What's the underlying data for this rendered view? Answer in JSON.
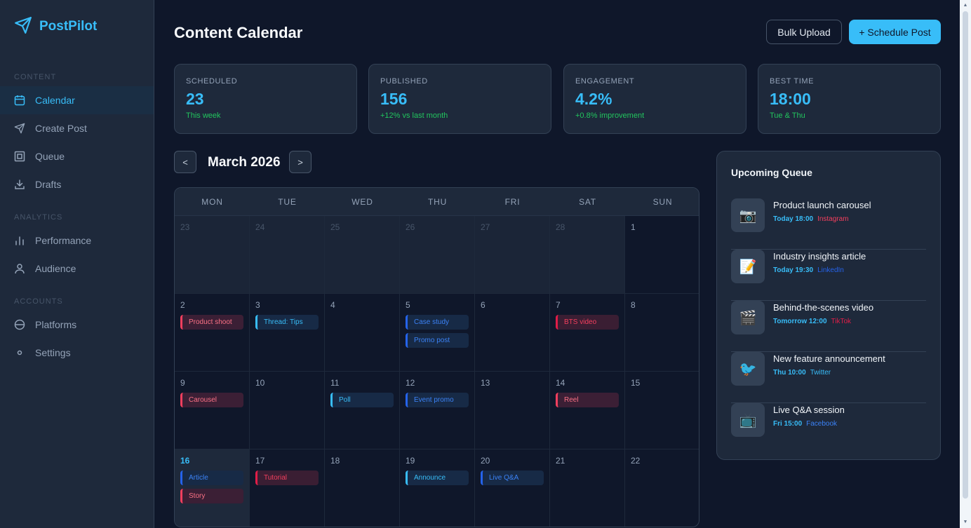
{
  "app": {
    "name": "PostPilot"
  },
  "sidebar": {
    "sections": [
      {
        "label": "CONTENT"
      },
      {
        "label": "ANALYTICS"
      },
      {
        "label": "ACCOUNTS"
      }
    ],
    "items": [
      {
        "label": "Calendar",
        "icon": "calendar-icon",
        "active": true
      },
      {
        "label": "Create Post",
        "icon": "send-icon"
      },
      {
        "label": "Queue",
        "icon": "queue-icon"
      },
      {
        "label": "Drafts",
        "icon": "download-icon"
      },
      {
        "label": "Performance",
        "icon": "bar-chart-icon"
      },
      {
        "label": "Audience",
        "icon": "user-icon"
      },
      {
        "label": "Platforms",
        "icon": "globe-icon"
      },
      {
        "label": "Settings",
        "icon": "settings-icon"
      }
    ]
  },
  "header": {
    "title": "Content Calendar",
    "bulk_upload": "Bulk Upload",
    "schedule_post": "+ Schedule Post"
  },
  "stats": [
    {
      "label": "SCHEDULED",
      "value": "23",
      "sub": "This week"
    },
    {
      "label": "PUBLISHED",
      "value": "156",
      "sub": "+12% vs last month"
    },
    {
      "label": "ENGAGEMENT",
      "value": "4.2%",
      "sub": "+0.8% improvement"
    },
    {
      "label": "BEST TIME",
      "value": "18:00",
      "sub": "Tue & Thu"
    }
  ],
  "calendar": {
    "month": "March 2026",
    "prev": "<",
    "next": ">",
    "weekdays": [
      "MON",
      "TUE",
      "WED",
      "THU",
      "FRI",
      "SAT",
      "SUN"
    ],
    "weeks": [
      [
        {
          "day": "23",
          "other": true,
          "events": []
        },
        {
          "day": "24",
          "other": true,
          "events": []
        },
        {
          "day": "25",
          "other": true,
          "events": []
        },
        {
          "day": "26",
          "other": true,
          "events": []
        },
        {
          "day": "27",
          "other": true,
          "events": []
        },
        {
          "day": "28",
          "other": true,
          "events": []
        },
        {
          "day": "1",
          "events": []
        }
      ],
      [
        {
          "day": "2",
          "events": [
            {
              "label": "Product shoot",
              "style": "ev-pink"
            }
          ]
        },
        {
          "day": "3",
          "events": [
            {
              "label": "Thread: Tips",
              "style": "ev-blue"
            }
          ]
        },
        {
          "day": "4",
          "events": []
        },
        {
          "day": "5",
          "events": [
            {
              "label": "Case study",
              "style": "ev-blue2"
            },
            {
              "label": "Promo post",
              "style": "ev-blue2"
            }
          ]
        },
        {
          "day": "6",
          "events": []
        },
        {
          "day": "7",
          "events": [
            {
              "label": "BTS video",
              "style": "ev-pink2"
            }
          ]
        },
        {
          "day": "8",
          "events": []
        }
      ],
      [
        {
          "day": "9",
          "events": [
            {
              "label": "Carousel",
              "style": "ev-pink"
            }
          ]
        },
        {
          "day": "10",
          "events": []
        },
        {
          "day": "11",
          "events": [
            {
              "label": "Poll",
              "style": "ev-blue"
            }
          ]
        },
        {
          "day": "12",
          "events": [
            {
              "label": "Event promo",
              "style": "ev-blue2"
            }
          ]
        },
        {
          "day": "13",
          "events": []
        },
        {
          "day": "14",
          "events": [
            {
              "label": "Reel",
              "style": "ev-pink"
            }
          ]
        },
        {
          "day": "15",
          "events": []
        }
      ],
      [
        {
          "day": "16",
          "today": true,
          "events": [
            {
              "label": "Article",
              "style": "ev-blue2"
            },
            {
              "label": "Story",
              "style": "ev-pink"
            }
          ]
        },
        {
          "day": "17",
          "events": [
            {
              "label": "Tutorial",
              "style": "ev-pink2"
            }
          ]
        },
        {
          "day": "18",
          "events": []
        },
        {
          "day": "19",
          "events": [
            {
              "label": "Announce",
              "style": "ev-blue"
            }
          ]
        },
        {
          "day": "20",
          "events": [
            {
              "label": "Live Q&A",
              "style": "ev-blue2"
            }
          ]
        },
        {
          "day": "21",
          "events": []
        },
        {
          "day": "22",
          "events": []
        }
      ]
    ]
  },
  "queue": {
    "title": "Upcoming Queue",
    "items": [
      {
        "title": "Product launch carousel",
        "time": "Today 18:00",
        "platform": "Instagram",
        "platform_color": "#f43f5e",
        "thumb": "📷",
        "icon": "camera-icon"
      },
      {
        "title": "Industry insights article",
        "time": "Today 19:30",
        "platform": "LinkedIn",
        "platform_color": "#2563eb",
        "thumb": "📝",
        "icon": "memo-icon"
      },
      {
        "title": "Behind-the-scenes video",
        "time": "Tomorrow 12:00",
        "platform": "TikTok",
        "platform_color": "#e11d48",
        "thumb": "🎬",
        "icon": "clapper-icon"
      },
      {
        "title": "New feature announcement",
        "time": "Thu 10:00",
        "platform": "Twitter",
        "platform_color": "#38bdf8",
        "thumb": "🐦",
        "icon": "bird-icon"
      },
      {
        "title": "Live Q&A session",
        "time": "Fri 15:00",
        "platform": "Facebook",
        "platform_color": "#3b82f6",
        "thumb": "📺",
        "icon": "tv-icon"
      }
    ]
  }
}
